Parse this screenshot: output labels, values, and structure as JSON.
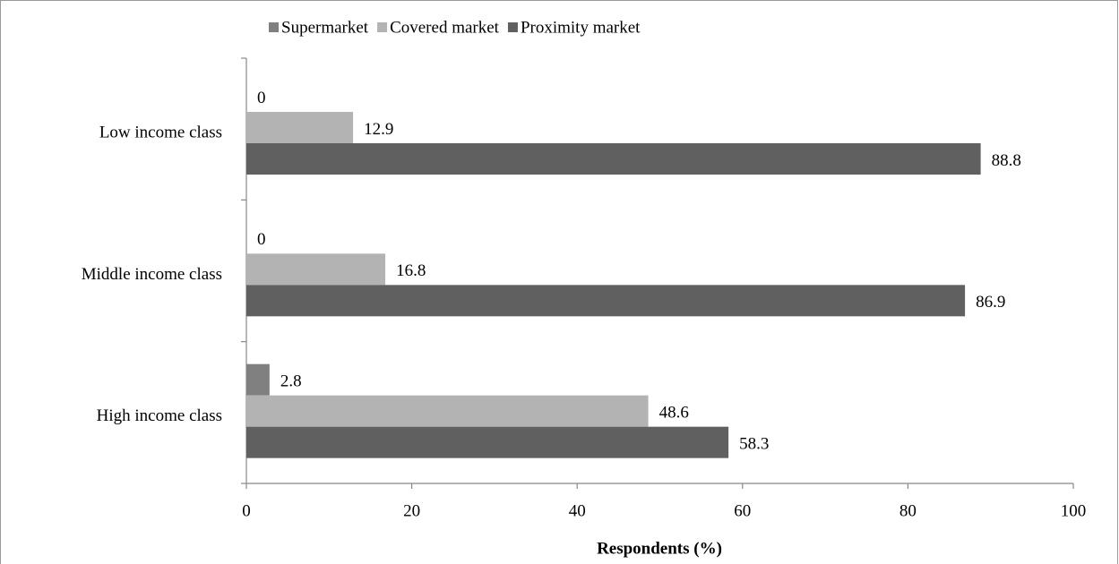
{
  "chart_data": {
    "type": "hbar",
    "xlabel": "Respondents (%)",
    "categories": [
      "Low income class",
      "Middle income class",
      "High income class"
    ],
    "series": [
      {
        "name": "Supermarket",
        "color": "#808080",
        "values": [
          0,
          0,
          2.8
        ]
      },
      {
        "name": "Covered market",
        "color": "#b3b3b3",
        "values": [
          12.9,
          16.8,
          48.6
        ]
      },
      {
        "name": "Proximity market",
        "color": "#606060",
        "values": [
          88.8,
          86.9,
          58.3
        ]
      }
    ],
    "xlim": [
      0,
      100
    ],
    "xticks": [
      0,
      20,
      40,
      60,
      80,
      100
    ],
    "legend": "top"
  }
}
